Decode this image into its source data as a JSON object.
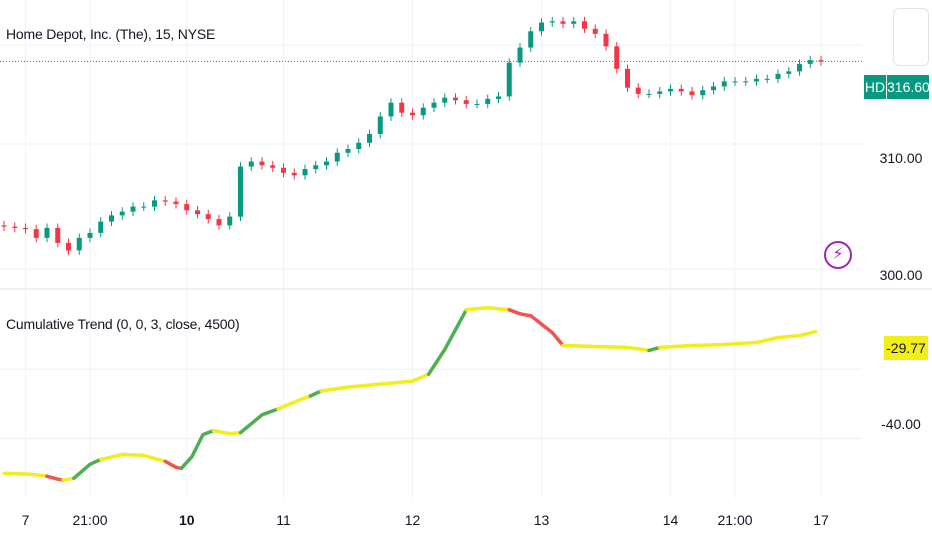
{
  "colors": {
    "up": "#089981",
    "down": "#f23645",
    "trend_neutral": "#f2ee1a",
    "trend_up": "#4caf50",
    "trend_down": "#f05350",
    "grid": "#f0f3fa",
    "price_line": "#089981",
    "indicator_badge": "#f2ee1a"
  },
  "header": {
    "symbol_title": "Home Depot, Inc. (The), 15, NYSE",
    "indicator_title": "Cumulative Trend (0, 0, 3, close, 4500)"
  },
  "price_badge": {
    "ticker": "HD",
    "value": "316.60"
  },
  "indicator_badge": {
    "value": "-29.77"
  },
  "icons": {
    "fullscreen": "square-icon",
    "alert": "lightning-icon"
  },
  "chart_data": [
    {
      "type": "candlestick",
      "ylim": [
        298.5,
        321.5
      ],
      "y_ticks": [
        "310.00",
        "300.00"
      ],
      "y_tick_values": [
        310,
        300
      ],
      "last_price": 316.6,
      "series": [
        {
          "x": 0,
          "y": 303.4
        },
        {
          "x": 1,
          "y": 303.3
        },
        {
          "x": 2,
          "y": 303.2
        },
        {
          "x": 3,
          "y": 302.5
        },
        {
          "x": 4,
          "y": 303.3
        },
        {
          "x": 5,
          "y": 302.1
        },
        {
          "x": 6,
          "y": 301.5
        },
        {
          "x": 7,
          "y": 302.5
        },
        {
          "x": 8,
          "y": 302.9
        },
        {
          "x": 9,
          "y": 303.8
        },
        {
          "x": 10,
          "y": 304.3
        },
        {
          "x": 11,
          "y": 304.6
        },
        {
          "x": 12,
          "y": 305.0
        },
        {
          "x": 13,
          "y": 305.0
        },
        {
          "x": 14,
          "y": 305.5
        },
        {
          "x": 15,
          "y": 305.4
        },
        {
          "x": 16,
          "y": 305.2
        },
        {
          "x": 17,
          "y": 304.7
        },
        {
          "x": 18,
          "y": 304.4
        },
        {
          "x": 19,
          "y": 304.0
        },
        {
          "x": 20,
          "y": 303.5
        },
        {
          "x": 21,
          "y": 304.2
        },
        {
          "x": 22,
          "y": 308.2
        },
        {
          "x": 23,
          "y": 308.6
        },
        {
          "x": 24,
          "y": 308.3
        },
        {
          "x": 25,
          "y": 308.1
        },
        {
          "x": 26,
          "y": 307.7
        },
        {
          "x": 27,
          "y": 307.5
        },
        {
          "x": 28,
          "y": 308.0
        },
        {
          "x": 29,
          "y": 308.3
        },
        {
          "x": 30,
          "y": 308.6
        },
        {
          "x": 31,
          "y": 309.3
        },
        {
          "x": 32,
          "y": 309.6
        },
        {
          "x": 33,
          "y": 310.1
        },
        {
          "x": 34,
          "y": 310.8
        },
        {
          "x": 35,
          "y": 312.2
        },
        {
          "x": 36,
          "y": 313.3
        },
        {
          "x": 37,
          "y": 312.5
        },
        {
          "x": 38,
          "y": 312.3
        },
        {
          "x": 39,
          "y": 312.9
        },
        {
          "x": 40,
          "y": 313.3
        },
        {
          "x": 41,
          "y": 313.7
        },
        {
          "x": 42,
          "y": 313.5
        },
        {
          "x": 43,
          "y": 313.2
        },
        {
          "x": 44,
          "y": 313.2
        },
        {
          "x": 45,
          "y": 313.6
        },
        {
          "x": 46,
          "y": 313.8
        },
        {
          "x": 47,
          "y": 316.5
        },
        {
          "x": 48,
          "y": 317.7
        },
        {
          "x": 49,
          "y": 319.0
        },
        {
          "x": 50,
          "y": 319.7
        },
        {
          "x": 51,
          "y": 319.8
        },
        {
          "x": 52,
          "y": 319.6
        },
        {
          "x": 53,
          "y": 319.8
        },
        {
          "x": 54,
          "y": 319.2
        },
        {
          "x": 55,
          "y": 318.8
        },
        {
          "x": 56,
          "y": 317.8
        },
        {
          "x": 57,
          "y": 316.0
        },
        {
          "x": 58,
          "y": 314.5
        },
        {
          "x": 59,
          "y": 314.0
        },
        {
          "x": 60,
          "y": 314.0
        },
        {
          "x": 61,
          "y": 314.2
        },
        {
          "x": 62,
          "y": 314.4
        },
        {
          "x": 63,
          "y": 314.2
        },
        {
          "x": 64,
          "y": 313.9
        },
        {
          "x": 65,
          "y": 314.3
        },
        {
          "x": 66,
          "y": 314.6
        },
        {
          "x": 67,
          "y": 315.0
        },
        {
          "x": 68,
          "y": 315.0
        },
        {
          "x": 69,
          "y": 315.0
        },
        {
          "x": 70,
          "y": 315.2
        },
        {
          "x": 71,
          "y": 315.2
        },
        {
          "x": 72,
          "y": 315.6
        },
        {
          "x": 73,
          "y": 315.8
        },
        {
          "x": 74,
          "y": 316.4
        },
        {
          "x": 75,
          "y": 316.7
        },
        {
          "x": 76,
          "y": 316.6
        }
      ]
    },
    {
      "type": "line",
      "name": "Cumulative Trend",
      "ylim": [
        -46,
        -25
      ],
      "y_ticks": [
        "-40.00"
      ],
      "y_tick_values": [
        -40
      ],
      "last_value": -29.77,
      "segments": [
        {
          "trend": "neutral",
          "points": [
            [
              0,
              -43.5
            ],
            [
              2.5,
              -43.6
            ],
            [
              4,
              -43.8
            ]
          ]
        },
        {
          "trend": "down",
          "points": [
            [
              4,
              -43.8
            ],
            [
              5,
              -44.1
            ],
            [
              5.5,
              -44.2
            ]
          ]
        },
        {
          "trend": "neutral",
          "points": [
            [
              5.5,
              -44.2
            ],
            [
              6.5,
              -44.0
            ]
          ]
        },
        {
          "trend": "up",
          "points": [
            [
              6.5,
              -44.0
            ],
            [
              8,
              -42.6
            ],
            [
              9,
              -42.1
            ]
          ]
        },
        {
          "trend": "neutral",
          "points": [
            [
              9,
              -42.1
            ],
            [
              11,
              -41.6
            ],
            [
              13,
              -41.7
            ],
            [
              15,
              -42.3
            ]
          ]
        },
        {
          "trend": "down",
          "points": [
            [
              15,
              -42.3
            ],
            [
              16,
              -42.9
            ],
            [
              16.5,
              -43.0
            ]
          ]
        },
        {
          "trend": "up",
          "points": [
            [
              16.5,
              -43.0
            ],
            [
              17.5,
              -41.8
            ],
            [
              18.5,
              -39.6
            ],
            [
              19.5,
              -39.2
            ]
          ]
        },
        {
          "trend": "neutral",
          "points": [
            [
              19.5,
              -39.2
            ],
            [
              21,
              -39.5
            ],
            [
              22,
              -39.4
            ]
          ]
        },
        {
          "trend": "up",
          "points": [
            [
              22,
              -39.4
            ],
            [
              24,
              -37.6
            ],
            [
              25.5,
              -37.0
            ]
          ]
        },
        {
          "trend": "neutral",
          "points": [
            [
              25.5,
              -37.0
            ],
            [
              27.5,
              -36.1
            ],
            [
              28.5,
              -35.7
            ]
          ]
        },
        {
          "trend": "up",
          "points": [
            [
              28.5,
              -35.7
            ],
            [
              29.5,
              -35.2
            ]
          ]
        },
        {
          "trend": "neutral",
          "points": [
            [
              29.5,
              -35.2
            ],
            [
              32,
              -34.8
            ],
            [
              35,
              -34.5
            ],
            [
              38,
              -34.2
            ],
            [
              39.5,
              -33.5
            ]
          ]
        },
        {
          "trend": "up",
          "points": [
            [
              39.5,
              -33.5
            ],
            [
              41,
              -31.0
            ],
            [
              43,
              -27.0
            ]
          ]
        },
        {
          "trend": "neutral",
          "points": [
            [
              43,
              -27.0
            ],
            [
              45,
              -26.8
            ],
            [
              47,
              -27.0
            ]
          ]
        },
        {
          "trend": "down",
          "points": [
            [
              47,
              -27.0
            ],
            [
              48,
              -27.4
            ],
            [
              49,
              -27.6
            ]
          ]
        },
        {
          "trend": "trend_down_long",
          "points": [
            [
              49,
              -27.6
            ],
            [
              51,
              -29.3
            ],
            [
              52,
              -30.6
            ]
          ]
        },
        {
          "trend": "neutral",
          "points": [
            [
              52,
              -30.6
            ],
            [
              55,
              -30.7
            ],
            [
              58,
              -30.8
            ],
            [
              60,
              -31.1
            ]
          ]
        },
        {
          "trend": "up",
          "points": [
            [
              60,
              -31.1
            ],
            [
              61,
              -30.8
            ]
          ]
        },
        {
          "trend": "neutral",
          "points": [
            [
              61,
              -30.8
            ],
            [
              64,
              -30.6
            ],
            [
              67,
              -30.5
            ],
            [
              70,
              -30.3
            ],
            [
              72,
              -29.8
            ],
            [
              74,
              -29.6
            ],
            [
              75.5,
              -29.2
            ]
          ]
        }
      ]
    }
  ],
  "x_axis": {
    "ticks": [
      {
        "label": "7",
        "x": 2,
        "bold": false
      },
      {
        "label": "21:00",
        "x": 8,
        "bold": false
      },
      {
        "label": "10",
        "x": 17,
        "bold": true
      },
      {
        "label": "11",
        "x": 26,
        "bold": false
      },
      {
        "label": "12",
        "x": 38,
        "bold": false
      },
      {
        "label": "13",
        "x": 50,
        "bold": false
      },
      {
        "label": "14",
        "x": 62,
        "bold": false
      },
      {
        "label": "21:00",
        "x": 68,
        "bold": false
      },
      {
        "label": "17",
        "x": 76,
        "bold": false
      }
    ]
  }
}
